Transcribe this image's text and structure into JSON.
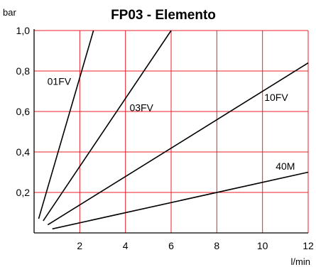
{
  "chart_data": {
    "type": "line",
    "title": "FP03 - Elemento",
    "xlabel": "l/min",
    "ylabel": "bar",
    "xlim": [
      0,
      12
    ],
    "ylim": [
      0,
      1.0
    ],
    "grid": true,
    "x_ticks": [
      2,
      4,
      6,
      8,
      10,
      12
    ],
    "y_ticks": [
      0.2,
      0.4,
      0.6,
      0.8,
      1.0
    ],
    "x_tick_labels": [
      "2",
      "4",
      "6",
      "8",
      "10",
      "12"
    ],
    "y_tick_labels": [
      "0,2",
      "0,4",
      "0,6",
      "0,8",
      "1,0"
    ],
    "series": [
      {
        "name": "01FV",
        "x": [
          0.2,
          2.6
        ],
        "y": [
          0.07,
          1.0
        ],
        "label_at": [
          1.1,
          0.75
        ]
      },
      {
        "name": "03FV",
        "x": [
          0.4,
          6.0
        ],
        "y": [
          0.06,
          1.0
        ],
        "label_at": [
          4.7,
          0.62
        ]
      },
      {
        "name": "10FV",
        "x": [
          0.6,
          12.0
        ],
        "y": [
          0.04,
          0.84
        ],
        "label_at": [
          10.6,
          0.67
        ]
      },
      {
        "name": "40M",
        "x": [
          0.8,
          12.0
        ],
        "y": [
          0.02,
          0.3
        ],
        "label_at": [
          11.0,
          0.33
        ]
      }
    ],
    "colors": {
      "grid": "#e8202a",
      "axes": "#000000",
      "lines": "#000000"
    }
  }
}
